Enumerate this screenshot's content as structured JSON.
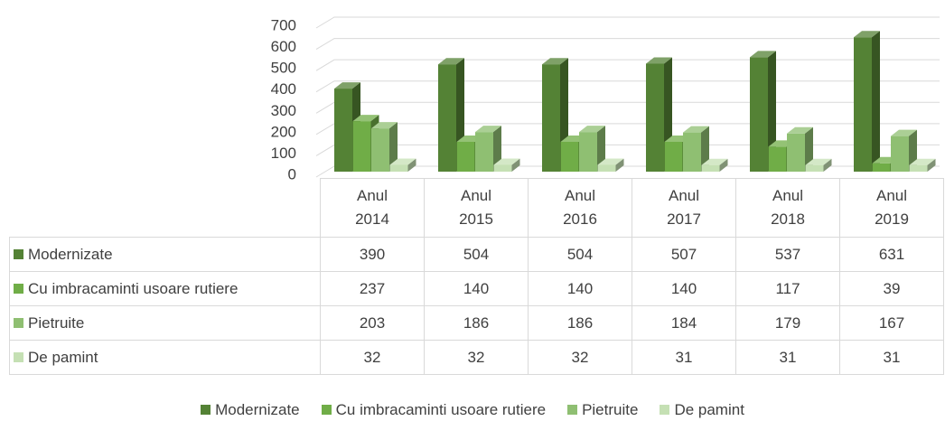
{
  "chart_data": {
    "type": "bar3d",
    "categories": [
      "Anul 2014",
      "Anul 2015",
      "Anul 2016",
      "Anul 2017",
      "Anul 2018",
      "Anul 2019"
    ],
    "series": [
      {
        "name": "Modernizate",
        "color": "#548235",
        "values": [
          390,
          504,
          504,
          507,
          537,
          631
        ]
      },
      {
        "name": "Cu imbracaminti usoare rutiere",
        "color": "#70ad47",
        "values": [
          237,
          140,
          140,
          140,
          117,
          39
        ]
      },
      {
        "name": "Pietruite",
        "color": "#8fbf72",
        "values": [
          203,
          186,
          186,
          184,
          179,
          167
        ]
      },
      {
        "name": "De pamint",
        "color": "#c5e0b4",
        "values": [
          32,
          32,
          32,
          31,
          31,
          31
        ]
      }
    ],
    "ylim": [
      0,
      700
    ],
    "yticks": [
      0,
      100,
      200,
      300,
      400,
      500,
      600,
      700
    ],
    "grid": true,
    "legend": "bottom"
  }
}
